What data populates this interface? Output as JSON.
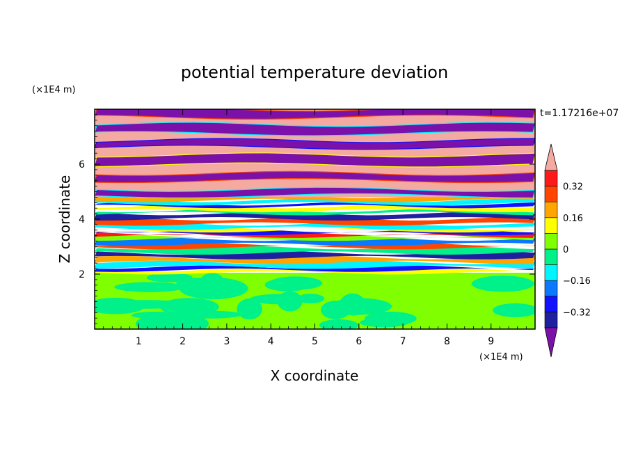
{
  "chart_data": {
    "type": "heatmap",
    "title": "potential temperature deviation",
    "xlabel": "X coordinate",
    "ylabel": "Z coordinate",
    "x_unit": "(×1E4 m)",
    "y_unit": "(×1E4 m)",
    "time_label": "t=1.17216e+07",
    "xlim": [
      0,
      10
    ],
    "ylim": [
      0,
      8
    ],
    "x_ticks": [
      "1",
      "2",
      "3",
      "4",
      "5",
      "6",
      "7",
      "8",
      "9"
    ],
    "y_ticks": [
      "2",
      "4",
      "6"
    ],
    "colorbar": {
      "levels": [
        -0.4,
        -0.32,
        -0.24,
        -0.16,
        -0.08,
        0,
        0.08,
        0.16,
        0.24,
        0.32,
        0.4
      ],
      "colors": [
        "#7b11a8",
        "#1f1fa0",
        "#1212ff",
        "#0a78ff",
        "#00f5ff",
        "#00f08a",
        "#80ff00",
        "#ffff00",
        "#ffa500",
        "#ff4500",
        "#ff1a1a",
        "#f4aaa0"
      ],
      "tick_labels": [
        "0.32",
        "0.16",
        "0",
        "−0.16",
        "−0.32"
      ],
      "extend": "both"
    }
  }
}
